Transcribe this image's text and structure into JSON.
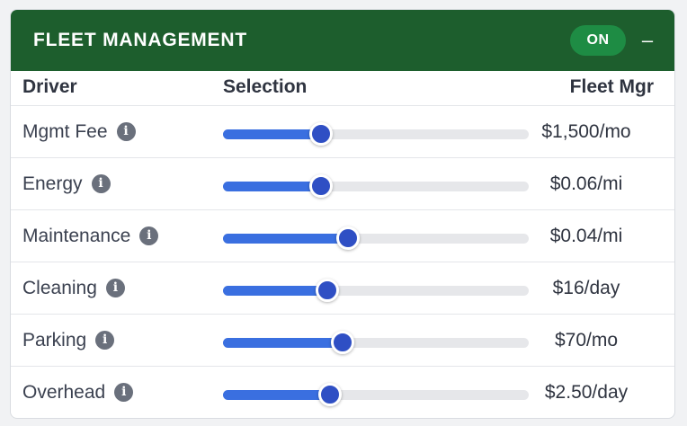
{
  "panel": {
    "title": "FLEET MANAGEMENT",
    "toggle_label": "ON",
    "collapse_symbol": "–",
    "header_color": "#1d5e2d",
    "accent_color": "#3a6fe0"
  },
  "columns": {
    "driver": "Driver",
    "selection": "Selection",
    "value": "Fleet Mgr"
  },
  "rows": [
    {
      "driver": "Mgmt Fee",
      "value": "$1,500/mo",
      "slider_fraction": 0.32
    },
    {
      "driver": "Energy",
      "value": "$0.06/mi",
      "slider_fraction": 0.32
    },
    {
      "driver": "Maintenance",
      "value": "$0.04/mi",
      "slider_fraction": 0.41
    },
    {
      "driver": "Cleaning",
      "value": "$16/day",
      "slider_fraction": 0.34
    },
    {
      "driver": "Parking",
      "value": "$70/mo",
      "slider_fraction": 0.39
    },
    {
      "driver": "Overhead",
      "value": "$2.50/day",
      "slider_fraction": 0.35
    }
  ]
}
